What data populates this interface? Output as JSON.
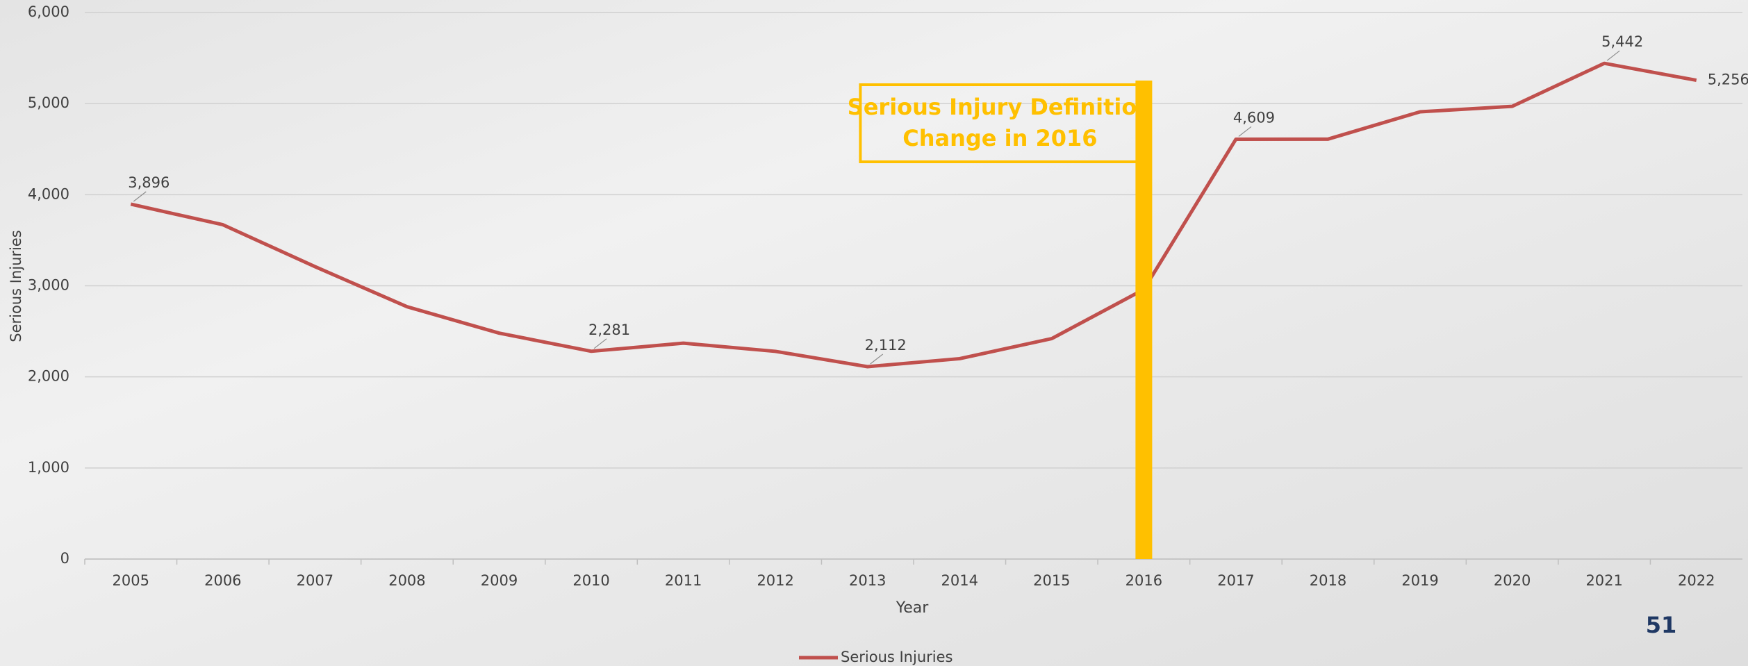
{
  "chart_data": {
    "type": "line",
    "x_label": "Year",
    "y_label": "Serious Injuries",
    "categories": [
      "2005",
      "2006",
      "2007",
      "2008",
      "2009",
      "2010",
      "2011",
      "2012",
      "2013",
      "2014",
      "2015",
      "2016",
      "2017",
      "2018",
      "2019",
      "2020",
      "2021",
      "2022"
    ],
    "series": [
      {
        "name": "Serious Injuries",
        "color": "#c0504d",
        "values": [
          3896,
          3670,
          3210,
          2770,
          2480,
          2281,
          2370,
          2280,
          2112,
          2200,
          2420,
          2960,
          4609,
          4610,
          4910,
          4970,
          5442,
          5256
        ],
        "value_labels": [
          "3,896",
          null,
          null,
          null,
          null,
          "2,281",
          null,
          null,
          "2,112",
          null,
          null,
          null,
          "4,609",
          null,
          null,
          null,
          "5,442",
          "5,256"
        ]
      }
    ],
    "ylim": [
      0,
      6000
    ],
    "yticks": [
      0,
      {
        "value": 1000,
        "label": "1,000"
      },
      {
        "value": 2000,
        "label": "2,000"
      },
      {
        "value": 3000,
        "label": "3,000"
      },
      {
        "value": 4000,
        "label": "4,000"
      },
      {
        "value": 5000,
        "label": "5,000"
      },
      {
        "value": 6000,
        "label": "6,000"
      }
    ],
    "grid": true,
    "legend": "bottom",
    "annotation": {
      "category": "2016",
      "color": "#ffc000",
      "lines": [
        "Serious Injury Definition",
        "Change in 2016"
      ]
    }
  },
  "page_number": "51"
}
